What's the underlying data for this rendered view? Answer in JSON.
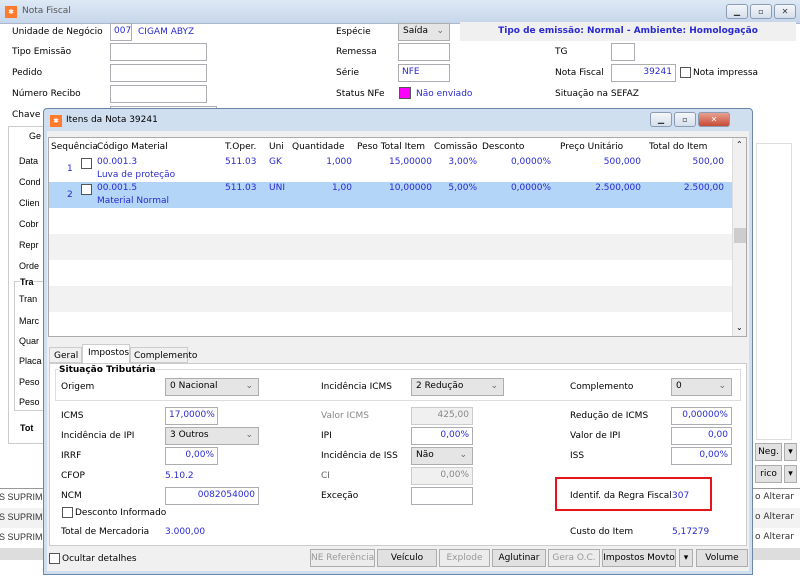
{
  "main": {
    "title": "Nota Fiscal",
    "unidade_label": "Unidade de Negócio",
    "unidade_code": "007",
    "unidade_name": "CIGAM ABYZ",
    "tipo_emissao_label": "Tipo Emissão",
    "pedido_label": "Pedido",
    "numero_recibo_label": "Número Recibo",
    "chave_label": "Chave NFe",
    "especie_label": "Espécie",
    "especie_value": "Saída",
    "remessa_label": "Remessa",
    "serie_label": "Série",
    "serie_value": "NFE",
    "status_label": "Status NFe",
    "status_value": "Não enviado",
    "status_color": "#ff00ff",
    "banner": "Tipo de emissão: Normal - Ambiente: Homologação",
    "tg_label": "TG",
    "nota_fiscal_label": "Nota Fiscal",
    "nota_fiscal_value": "39241",
    "nota_impressa_label": "Nota impressa",
    "situacao_label": "Situação na SEFAZ",
    "left_tab": "Ge",
    "left_labels": [
      "Data",
      "Cond",
      "Clien",
      "Cobr",
      "Repr",
      "Orde"
    ],
    "trans_group": "Tra",
    "trans_labels": [
      "Tran",
      "Marc",
      "Quar",
      "Placa",
      "Peso",
      "Peso"
    ],
    "total_label": "Tot",
    "right_buttons": [
      "Neg.",
      "rico"
    ],
    "list_rows": [
      {
        "left": "S SUPRIM",
        "right": "o Alterar"
      },
      {
        "left": "S SUPRIM",
        "right": "o Alterar"
      },
      {
        "left": "S SUPRIM",
        "right": "o Alterar"
      }
    ]
  },
  "dialog": {
    "title": "Itens da Nota 39241",
    "columns": [
      "Sequência",
      "Código Material",
      "T.Oper.",
      "Uni",
      "Quantidade",
      "Peso Total Item",
      "Comissão",
      "Desconto",
      "Preço Unitário",
      "Total do Item"
    ],
    "rows": [
      {
        "seq": "1",
        "code": "00.001.3",
        "desc": "Luva de proteção",
        "toper": "511.03",
        "uni": "GK",
        "qtd": "1,000",
        "peso": "15,00000",
        "comissao": "3,00%",
        "desconto": "0,0000%",
        "preco": "500,000",
        "total": "500,00"
      },
      {
        "seq": "2",
        "code": "00.001.5",
        "desc": "Material Normal",
        "toper": "511.03",
        "uni": "UNI",
        "qtd": "1,00",
        "peso": "10,00000",
        "comissao": "5,00%",
        "desconto": "0,0000%",
        "preco": "2.500,000",
        "total": "2.500,00",
        "selected": true
      }
    ],
    "tabs": [
      "Geral",
      "Impostos",
      "Complemento"
    ],
    "active_tab": "Impostos",
    "situacao_group": "Situação Tributária",
    "origem_label": "Origem",
    "origem_value": "0 Nacional",
    "incidencia_icms_label": "Incidência ICMS",
    "incidencia_icms_value": "2 Redução",
    "complemento_label": "Complemento",
    "complemento_value": "0",
    "icms_label": "ICMS",
    "icms_value": "17,0000%",
    "valor_icms_label": "Valor ICMS",
    "valor_icms_value": "425,00",
    "reducao_icms_label": "Redução de ICMS",
    "reducao_icms_value": "0,00000%",
    "incidencia_ipi_label": "Incidência de IPI",
    "incidencia_ipi_value": "3 Outros",
    "ipi_label": "IPI",
    "ipi_value": "0,00%",
    "valor_ipi_label": "Valor de IPI",
    "valor_ipi_value": "0,00",
    "irrf_label": "IRRF",
    "irrf_value": "0,00%",
    "incidencia_iss_label": "Incidência de ISS",
    "incidencia_iss_value": "Não",
    "iss_label": "ISS",
    "iss_value": "0,00%",
    "cfop_label": "CFOP",
    "cfop_value": "5.10.2",
    "ci_label": "CI",
    "ci_value": "0,00%",
    "ncm_label": "NCM",
    "ncm_value": "0082054000",
    "excecao_label": "Exceção",
    "regra_label": "Identif. da Regra Fiscal",
    "regra_value": "307",
    "desconto_informado_label": "Desconto Informado",
    "total_mercadoria_label": "Total de Mercadoria",
    "total_mercadoria_value": "3.000,00",
    "custo_label": "Custo do Item",
    "custo_value": "5,17279",
    "ocultar_label": "Ocultar detalhes",
    "buttons": {
      "ne_ref": "NE Referência",
      "veiculo": "Veículo",
      "explode": "Explode",
      "aglutinar": "Aglutinar",
      "gera_oc": "Gera O.C.",
      "impostos": "Impostos Movto",
      "volume": "Volume"
    }
  }
}
